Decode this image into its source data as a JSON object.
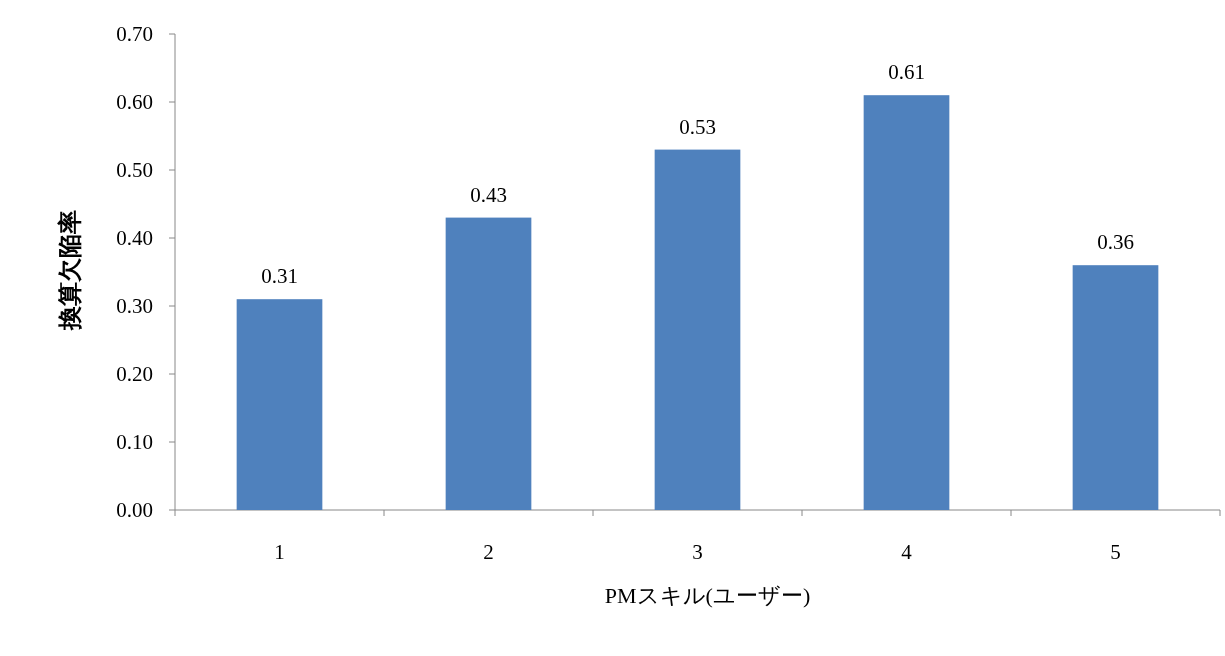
{
  "chart_data": {
    "type": "bar",
    "xlabel": "PMスキル(ユーザー)",
    "ylabel": "換算欠陥率",
    "categories": [
      "1",
      "2",
      "3",
      "4",
      "5"
    ],
    "values": [
      0.31,
      0.43,
      0.53,
      0.61,
      0.36
    ],
    "color": "#4f81bd",
    "data_labels": true,
    "grid": false,
    "ylim": [
      0,
      0.7
    ],
    "yticks": [
      {
        "value": 0,
        "label": "0.00"
      },
      {
        "value": 0.1,
        "label": "0.10"
      },
      {
        "value": 0.2,
        "label": "0.20"
      },
      {
        "value": 0.3,
        "label": "0.30"
      },
      {
        "value": 0.4,
        "label": "0.40"
      },
      {
        "value": 0.5,
        "label": "0.50"
      },
      {
        "value": 0.6,
        "label": "0.60"
      },
      {
        "value": 0.7,
        "label": "0.70"
      }
    ]
  }
}
